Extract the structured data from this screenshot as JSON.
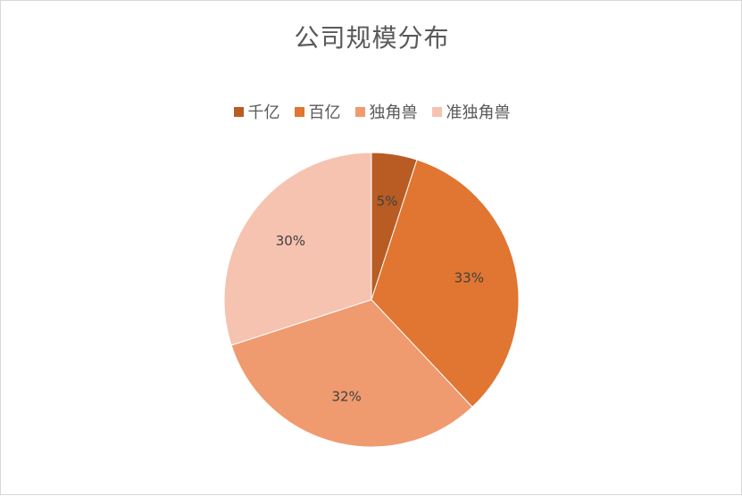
{
  "chart_data": {
    "type": "pie",
    "title": "公司规模分布",
    "categories": [
      "千亿",
      "百亿",
      "独角兽",
      "准独角兽"
    ],
    "values": [
      5,
      33,
      32,
      30
    ],
    "value_labels": [
      "5%",
      "33%",
      "32%",
      "30%"
    ],
    "colors": [
      "#b85c24",
      "#e07631",
      "#f09a6f",
      "#f5c3b0"
    ],
    "legend_position": "top",
    "start_angle": "12 o'clock",
    "direction": "clockwise"
  }
}
